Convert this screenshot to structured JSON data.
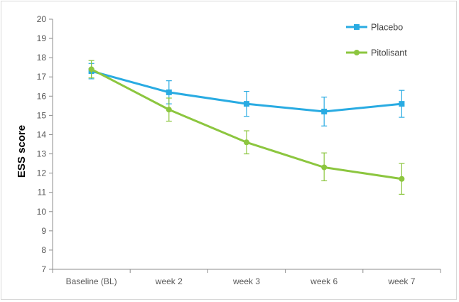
{
  "chart_data": {
    "type": "line",
    "categories": [
      "Baseline (BL)",
      "week 2",
      "week 3",
      "week 6",
      "week 7"
    ],
    "ylabel": "ESS score",
    "xlabel": "",
    "ylim": [
      7,
      20
    ],
    "yticks": [
      7,
      8,
      9,
      10,
      11,
      12,
      13,
      14,
      15,
      16,
      17,
      18,
      19,
      20
    ],
    "grid": false,
    "legend_position": "top-right",
    "series": [
      {
        "name": "Placebo",
        "color": "#29abe2",
        "marker": "square",
        "values": [
          17.3,
          16.2,
          15.6,
          15.2,
          15.6
        ],
        "error_upper": [
          17.7,
          16.8,
          16.25,
          15.95,
          16.3
        ],
        "error_lower": [
          16.9,
          15.6,
          14.95,
          14.45,
          14.9
        ]
      },
      {
        "name": "Pitolisant",
        "color": "#8cc63f",
        "marker": "circle",
        "values": [
          17.4,
          15.3,
          13.6,
          12.3,
          11.7
        ],
        "error_upper": [
          17.85,
          15.9,
          14.2,
          13.05,
          12.5
        ],
        "error_lower": [
          16.95,
          14.7,
          13.0,
          11.6,
          10.9
        ]
      }
    ]
  }
}
